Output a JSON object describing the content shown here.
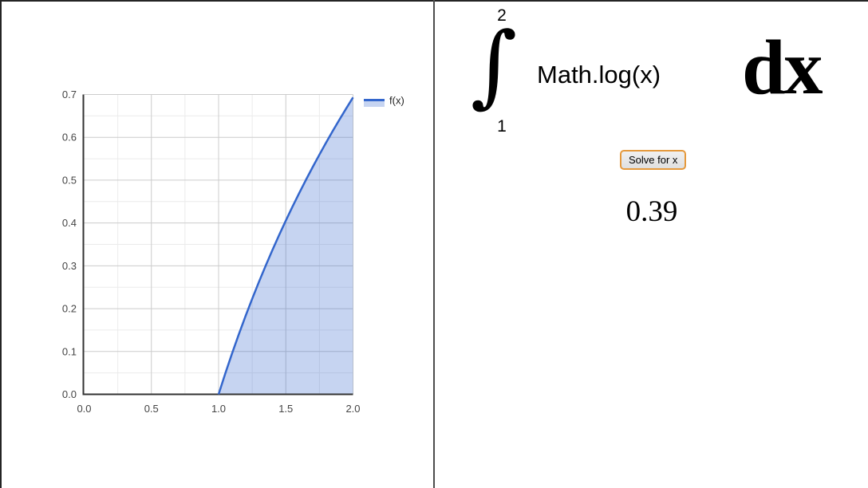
{
  "chart_data": {
    "type": "area",
    "title": "",
    "xlabel": "",
    "ylabel": "",
    "xlim": [
      0,
      2
    ],
    "ylim": [
      0,
      0.7
    ],
    "x_ticks": [
      0.0,
      0.5,
      1.0,
      1.5,
      2.0
    ],
    "x_tick_labels": [
      "0.0",
      "0.5",
      "1.0",
      "1.5",
      "2.0"
    ],
    "y_ticks": [
      0.0,
      0.1,
      0.2,
      0.3,
      0.4,
      0.5,
      0.6,
      0.7
    ],
    "y_tick_labels": [
      "0.0",
      "0.1",
      "0.2",
      "0.3",
      "0.4",
      "0.5",
      "0.6",
      "0.7"
    ],
    "x_minor_step": 0.25,
    "y_minor_step": 0.05,
    "grid": true,
    "legend_position": "right",
    "series": [
      {
        "name": "f(x)",
        "x": [
          1.0,
          1.05,
          1.1,
          1.15,
          1.2,
          1.25,
          1.3,
          1.35,
          1.4,
          1.45,
          1.5,
          1.55,
          1.6,
          1.65,
          1.7,
          1.75,
          1.8,
          1.85,
          1.9,
          1.95,
          2.0
        ],
        "y": [
          0.0,
          0.0488,
          0.0953,
          0.1398,
          0.1823,
          0.2231,
          0.2624,
          0.3001,
          0.3365,
          0.3716,
          0.4055,
          0.4383,
          0.47,
          0.5008,
          0.5306,
          0.5596,
          0.5878,
          0.6152,
          0.6419,
          0.6678,
          0.6931
        ]
      }
    ],
    "line_color": "#3366cc",
    "fill_color": "rgba(51,102,204,0.28)",
    "grid_major_color": "#cccccc",
    "grid_minor_color": "#ebebeb",
    "axis_line_color": "#333333",
    "tick_label_color": "#444444",
    "legend_text_color": "#222222"
  },
  "right_panel": {
    "integral": {
      "upper_bound": "2",
      "symbol": "∫",
      "integrand": "Math.log(x)",
      "differential": "dx",
      "lower_bound": "1"
    },
    "solve_button_label": "Solve for x",
    "result_value": "0.39",
    "button_border_color": "#e5993c"
  }
}
